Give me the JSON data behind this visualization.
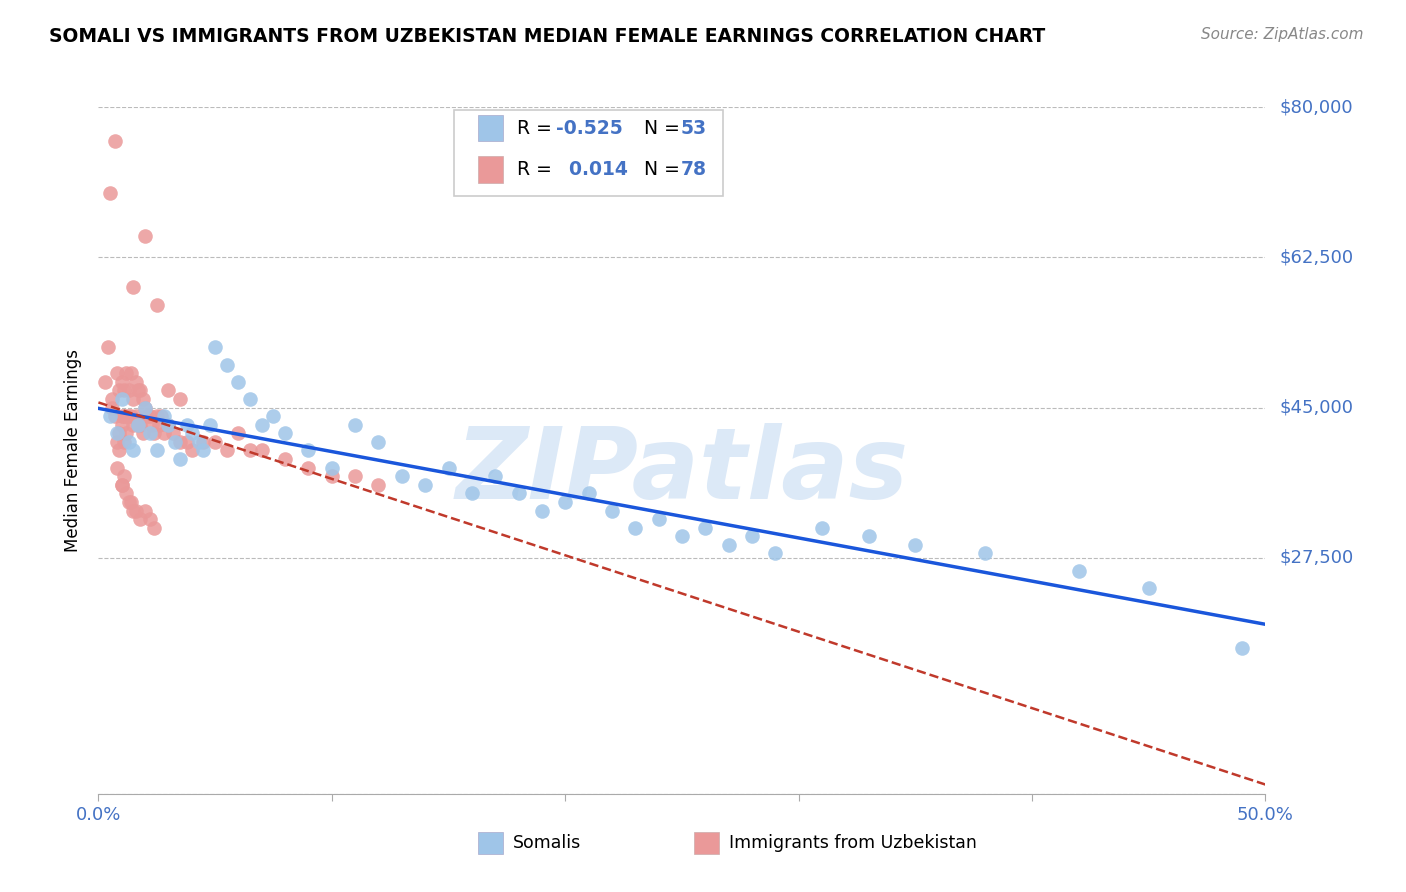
{
  "title": "SOMALI VS IMMIGRANTS FROM UZBEKISTAN MEDIAN FEMALE EARNINGS CORRELATION CHART",
  "source": "Source: ZipAtlas.com",
  "ylabel": "Median Female Earnings",
  "somali_color": "#9fc5e8",
  "uzbek_color": "#ea9999",
  "somali_line_color": "#1a56db",
  "uzbek_line_color": "#c0392b",
  "watermark_text": "ZIPatlas",
  "watermark_color": "#dce9f7",
  "R_somali": "-0.525",
  "N_somali": "53",
  "R_uzbek": "0.014",
  "N_uzbek": "78",
  "xlim": [
    0.0,
    0.5
  ],
  "ylim": [
    0,
    80000
  ],
  "ytick_vals": [
    0,
    27500,
    45000,
    62500,
    80000
  ],
  "ytick_labels": [
    "",
    "$27,500",
    "$45,000",
    "$62,500",
    "$80,000"
  ],
  "xtick_vals": [
    0.0,
    0.1,
    0.2,
    0.3,
    0.4,
    0.5
  ],
  "xtick_labels": [
    "0.0%",
    "",
    "",
    "",
    "",
    "50.0%"
  ],
  "label_color": "#4472c4",
  "somali_x": [
    0.005,
    0.008,
    0.01,
    0.013,
    0.015,
    0.017,
    0.02,
    0.022,
    0.025,
    0.028,
    0.03,
    0.033,
    0.035,
    0.038,
    0.04,
    0.043,
    0.045,
    0.048,
    0.05,
    0.055,
    0.06,
    0.065,
    0.07,
    0.075,
    0.08,
    0.09,
    0.1,
    0.11,
    0.12,
    0.13,
    0.14,
    0.15,
    0.16,
    0.17,
    0.18,
    0.19,
    0.2,
    0.21,
    0.22,
    0.23,
    0.24,
    0.25,
    0.26,
    0.27,
    0.28,
    0.29,
    0.31,
    0.33,
    0.35,
    0.38,
    0.42,
    0.45,
    0.49
  ],
  "somali_y": [
    44000,
    42000,
    46000,
    41000,
    40000,
    43000,
    45000,
    42000,
    40000,
    44000,
    43000,
    41000,
    39000,
    43000,
    42000,
    41000,
    40000,
    43000,
    52000,
    50000,
    48000,
    46000,
    43000,
    44000,
    42000,
    40000,
    38000,
    43000,
    41000,
    37000,
    36000,
    38000,
    35000,
    37000,
    35000,
    33000,
    34000,
    35000,
    33000,
    31000,
    32000,
    30000,
    31000,
    29000,
    30000,
    28000,
    31000,
    30000,
    29000,
    28000,
    26000,
    24000,
    17000
  ],
  "uzbek_x": [
    0.003,
    0.005,
    0.006,
    0.007,
    0.008,
    0.008,
    0.009,
    0.009,
    0.01,
    0.01,
    0.01,
    0.011,
    0.011,
    0.011,
    0.012,
    0.012,
    0.012,
    0.013,
    0.013,
    0.014,
    0.014,
    0.015,
    0.015,
    0.015,
    0.016,
    0.016,
    0.017,
    0.017,
    0.018,
    0.018,
    0.019,
    0.019,
    0.02,
    0.02,
    0.021,
    0.022,
    0.023,
    0.024,
    0.025,
    0.026,
    0.027,
    0.028,
    0.03,
    0.032,
    0.035,
    0.038,
    0.04,
    0.045,
    0.05,
    0.055,
    0.06,
    0.065,
    0.07,
    0.08,
    0.09,
    0.1,
    0.11,
    0.12,
    0.025,
    0.03,
    0.035,
    0.01,
    0.012,
    0.014,
    0.016,
    0.018,
    0.02,
    0.022,
    0.024,
    0.01,
    0.013,
    0.015,
    0.008,
    0.007,
    0.009,
    0.011,
    0.006,
    0.004
  ],
  "uzbek_y": [
    48000,
    70000,
    45000,
    76000,
    49000,
    41000,
    47000,
    42000,
    48000,
    44000,
    43000,
    47000,
    44000,
    41000,
    49000,
    44000,
    42000,
    47000,
    44000,
    49000,
    44000,
    59000,
    46000,
    43000,
    48000,
    44000,
    47000,
    43000,
    47000,
    43000,
    46000,
    42000,
    65000,
    45000,
    44000,
    44000,
    43000,
    42000,
    44000,
    43000,
    44000,
    42000,
    43000,
    42000,
    41000,
    41000,
    40000,
    41000,
    41000,
    40000,
    42000,
    40000,
    40000,
    39000,
    38000,
    37000,
    37000,
    36000,
    57000,
    47000,
    46000,
    36000,
    35000,
    34000,
    33000,
    32000,
    33000,
    32000,
    31000,
    36000,
    34000,
    33000,
    38000,
    44000,
    40000,
    37000,
    46000,
    52000
  ]
}
